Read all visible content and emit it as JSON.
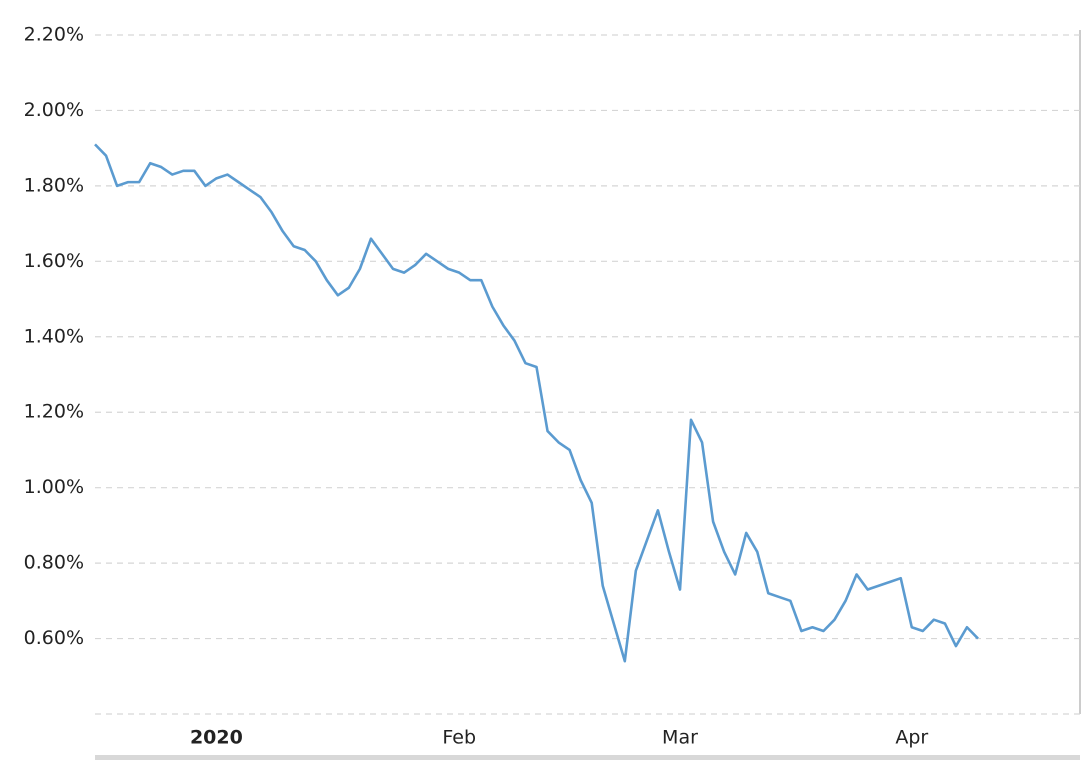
{
  "chart_data": {
    "type": "line",
    "categories": [
      null,
      null,
      null,
      null,
      null,
      null,
      null,
      null,
      null,
      null,
      null,
      "2020",
      null,
      null,
      null,
      null,
      null,
      null,
      null,
      null,
      null,
      null,
      null,
      null,
      null,
      null,
      null,
      null,
      null,
      null,
      null,
      null,
      null,
      "Feb",
      null,
      null,
      null,
      null,
      null,
      null,
      null,
      null,
      null,
      null,
      null,
      null,
      null,
      null,
      null,
      null,
      null,
      null,
      null,
      "Mar",
      null,
      null,
      null,
      null,
      null,
      null,
      null,
      null,
      null,
      null,
      null,
      null,
      null,
      null,
      null,
      null,
      null,
      null,
      null,
      null,
      "Apr",
      null,
      null,
      null,
      null,
      null,
      null
    ],
    "values": [
      1.91,
      1.88,
      1.8,
      1.81,
      1.81,
      1.86,
      1.85,
      1.83,
      1.84,
      1.84,
      1.8,
      1.82,
      1.83,
      1.81,
      1.79,
      1.77,
      1.73,
      1.68,
      1.64,
      1.63,
      1.6,
      1.55,
      1.51,
      1.53,
      1.58,
      1.66,
      1.62,
      1.58,
      1.57,
      1.59,
      1.62,
      1.6,
      1.58,
      1.57,
      1.55,
      1.55,
      1.48,
      1.43,
      1.39,
      1.33,
      1.32,
      1.15,
      1.12,
      1.1,
      1.02,
      0.96,
      0.74,
      0.64,
      0.54,
      0.78,
      0.86,
      0.94,
      0.83,
      0.73,
      1.18,
      1.12,
      0.91,
      0.83,
      0.77,
      0.88,
      0.83,
      0.72,
      0.71,
      0.7,
      0.62,
      0.63,
      0.62,
      0.65,
      0.7,
      0.77,
      0.73,
      0.74,
      0.75,
      0.76,
      0.63,
      0.62,
      0.65,
      0.64,
      0.58,
      0.63,
      0.6
    ],
    "color": "#5b9bd0",
    "ylim": [
      0.4,
      2.2
    ],
    "yticks": [
      {
        "value": 0.6,
        "label": "0.60%"
      },
      {
        "value": 0.8,
        "label": "0.80%"
      },
      {
        "value": 1.0,
        "label": "1.00%"
      },
      {
        "value": 1.2,
        "label": "1.20%"
      },
      {
        "value": 1.4,
        "label": "1.40%"
      },
      {
        "value": 1.6,
        "label": "1.60%"
      },
      {
        "value": 1.8,
        "label": "1.80%"
      },
      {
        "value": 2.0,
        "label": "2.00%"
      },
      {
        "value": 2.2,
        "label": "2.20%"
      }
    ],
    "grid": true
  }
}
